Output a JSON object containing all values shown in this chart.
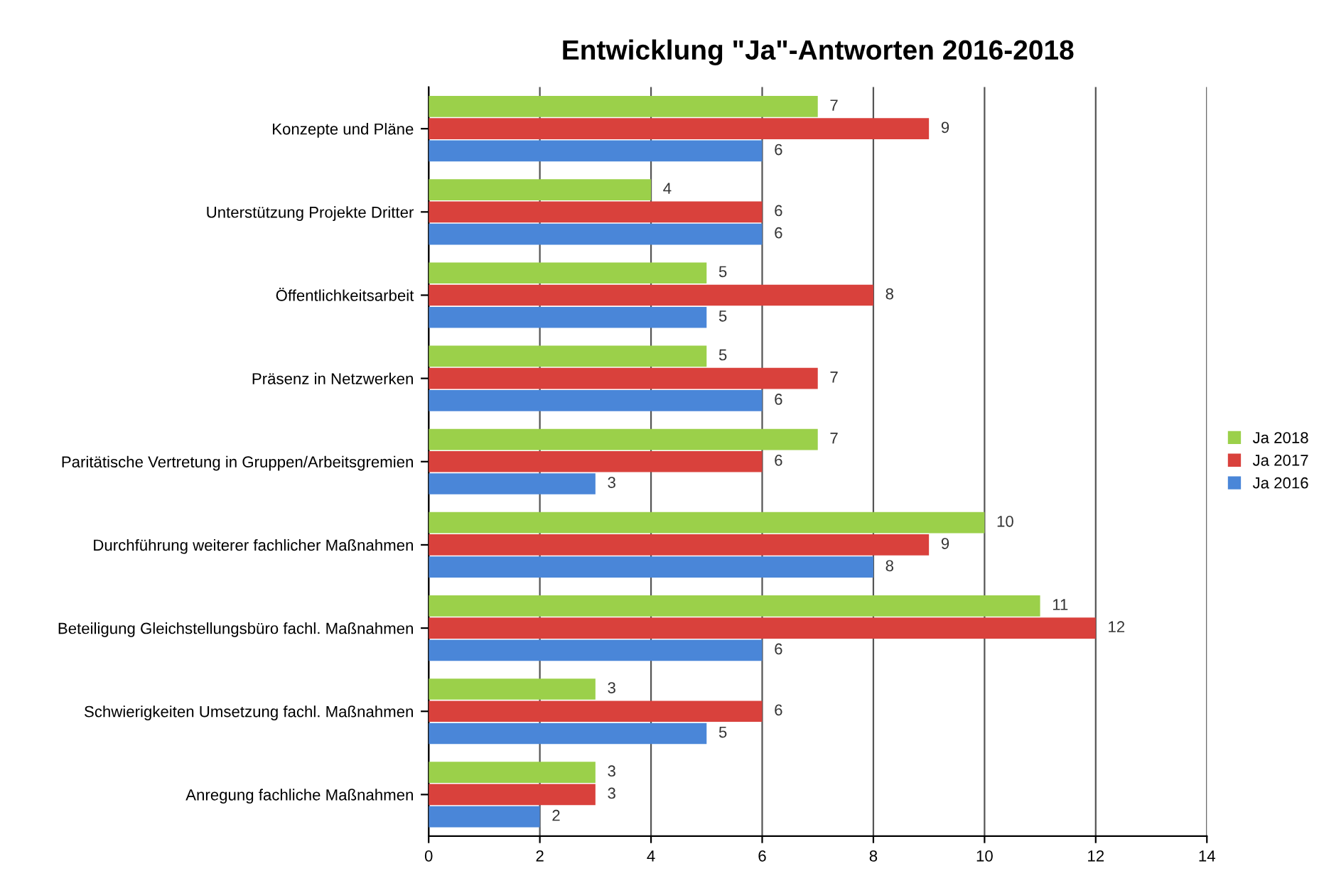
{
  "chart_data": {
    "type": "bar",
    "orientation": "horizontal",
    "title": "Entwicklung \"Ja\"-Antworten 2016-2018",
    "categories": [
      "Konzepte und Pläne",
      "Unterstützung Projekte Dritter",
      "Öffentlichkeitsarbeit",
      "Präsenz in Netzwerken",
      "Paritätische Vertretung in Gruppen/Arbeitsgremien",
      "Durchführung weiterer fachlicher Maßnahmen",
      "Beteiligung Gleichstellungsbüro fachl. Maßnahmen",
      "Schwierigkeiten Umsetzung fachl. Maßnahmen",
      "Anregung fachliche Maßnahmen"
    ],
    "series": [
      {
        "name": "Ja 2016",
        "color": "#4a86d8",
        "values": [
          6,
          6,
          5,
          6,
          3,
          8,
          6,
          5,
          2
        ]
      },
      {
        "name": "Ja 2017",
        "color": "#d9413c",
        "values": [
          9,
          6,
          8,
          7,
          6,
          9,
          12,
          6,
          3
        ]
      },
      {
        "name": "Ja 2018",
        "color": "#9bd04a",
        "values": [
          7,
          4,
          5,
          5,
          7,
          10,
          11,
          3,
          3
        ]
      }
    ],
    "xlim": [
      0,
      14
    ],
    "xticks": [
      0,
      2,
      4,
      6,
      8,
      10,
      12,
      14
    ],
    "grid": "x",
    "legend": "right",
    "data_labels": true
  }
}
